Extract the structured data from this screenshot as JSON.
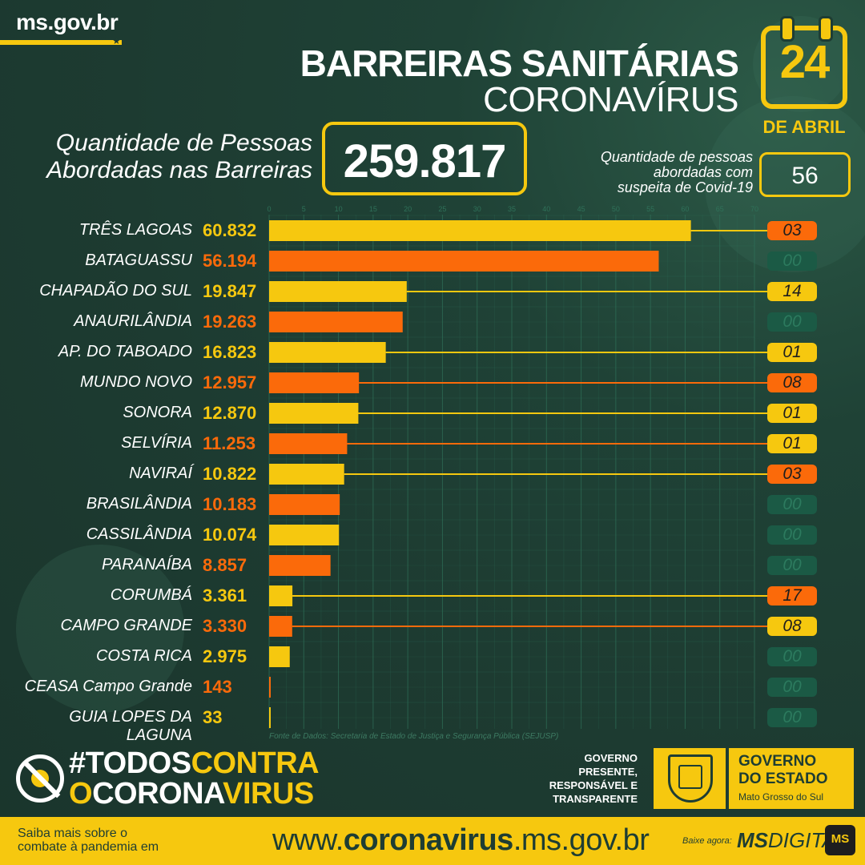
{
  "header": {
    "site": "ms.gov.br",
    "title": "BARREIRAS SANITÁRIAS",
    "subtitle": "CORONAVÍRUS",
    "date_day": "24",
    "date_month": "DE ABRIL"
  },
  "summary": {
    "total_label_1": "Quantidade de Pessoas",
    "total_label_2": "Abordadas nas Barreiras",
    "total_value": "259.817",
    "suspect_label_1": "Quantidade de pessoas",
    "suspect_label_2": "abordadas com",
    "suspect_label_3": "suspeita de Covid-19",
    "suspect_value": "56"
  },
  "colors": {
    "yellow": "#f6c80f",
    "orange": "#fb6a0a",
    "background": "#1e3d33",
    "zero_badge": "#1b5a45",
    "grid": "#2f7159"
  },
  "chart_data": {
    "type": "bar",
    "orientation": "horizontal",
    "axis_unit": "thousands",
    "xlim": [
      0,
      70
    ],
    "x_ticks": [
      0,
      5,
      10,
      15,
      20,
      25,
      30,
      35,
      40,
      45,
      50,
      55,
      60,
      65,
      70
    ],
    "grid": true,
    "source": "Fonte de Dados: Secretaria de Estado de Justiça e Segurança Pública (SEJUSP)",
    "rows": [
      {
        "label": "TRÊS LAGOAS",
        "value": 60832,
        "value_text": "60.832",
        "suspects": "03",
        "color": "yellow",
        "badge": "orange"
      },
      {
        "label": "BATAGUASSU",
        "value": 56194,
        "value_text": "56.194",
        "suspects": "00",
        "color": "orange",
        "badge": "zero"
      },
      {
        "label": "CHAPADÃO DO SUL",
        "value": 19847,
        "value_text": "19.847",
        "suspects": "14",
        "color": "yellow",
        "badge": "yellow"
      },
      {
        "label": "ANAURILÂNDIA",
        "value": 19263,
        "value_text": "19.263",
        "suspects": "00",
        "color": "orange",
        "badge": "zero"
      },
      {
        "label": "AP. DO TABOADO",
        "value": 16823,
        "value_text": "16.823",
        "suspects": "01",
        "color": "yellow",
        "badge": "yellow"
      },
      {
        "label": "MUNDO NOVO",
        "value": 12957,
        "value_text": "12.957",
        "suspects": "08",
        "color": "orange",
        "badge": "orange"
      },
      {
        "label": "SONORA",
        "value": 12870,
        "value_text": "12.870",
        "suspects": "01",
        "color": "yellow",
        "badge": "yellow"
      },
      {
        "label": "SELVÍRIA",
        "value": 11253,
        "value_text": "11.253",
        "suspects": "01",
        "color": "orange",
        "badge": "yellow"
      },
      {
        "label": "NAVIRAÍ",
        "value": 10822,
        "value_text": "10.822",
        "suspects": "03",
        "color": "yellow",
        "badge": "orange"
      },
      {
        "label": "BRASILÂNDIA",
        "value": 10183,
        "value_text": "10.183",
        "suspects": "00",
        "color": "orange",
        "badge": "zero"
      },
      {
        "label": "CASSILÂNDIA",
        "value": 10074,
        "value_text": "10.074",
        "suspects": "00",
        "color": "yellow",
        "badge": "zero"
      },
      {
        "label": "PARANAÍBA",
        "value": 8857,
        "value_text": "8.857",
        "suspects": "00",
        "color": "orange",
        "badge": "zero"
      },
      {
        "label": "CORUMBÁ",
        "value": 3361,
        "value_text": "3.361",
        "suspects": "17",
        "color": "yellow",
        "badge": "orange"
      },
      {
        "label": "CAMPO GRANDE",
        "value": 3330,
        "value_text": "3.330",
        "suspects": "08",
        "color": "orange",
        "badge": "yellow"
      },
      {
        "label": "COSTA RICA",
        "value": 2975,
        "value_text": "2.975",
        "suspects": "00",
        "color": "yellow",
        "badge": "zero"
      },
      {
        "label": "CEASA Campo Grande",
        "value": 143,
        "value_text": "143",
        "suspects": "00",
        "color": "orange",
        "badge": "zero"
      },
      {
        "label": "GUIA LOPES DA LAGUNA",
        "value": 33,
        "value_text": "33",
        "suspects": "00",
        "color": "yellow",
        "badge": "zero"
      }
    ]
  },
  "campaign": {
    "l1a": "#TODOS",
    "l1b": "CONTRA",
    "l2a": "O",
    "l2b": "CORONA",
    "l2c": "VIRUS"
  },
  "gov": {
    "slogan_1": "GOVERNO",
    "slogan_2": "PRESENTE,",
    "slogan_3": "RESPONSÁVEL E",
    "slogan_4": "TRANSPARENTE",
    "title_1": "GOVERNO",
    "title_2": "DO ESTADO",
    "state": "Mato Grosso do Sul"
  },
  "footer": {
    "info_1": "Saiba mais sobre o",
    "info_2": "combate à pandemia em",
    "url_a": "www.",
    "url_b": "coronavirus",
    "url_c": ".ms.gov.br",
    "download": "Baixe agora:",
    "app_a": "MS",
    "app_b": "DIGITAL",
    "app_icon": "MS"
  }
}
